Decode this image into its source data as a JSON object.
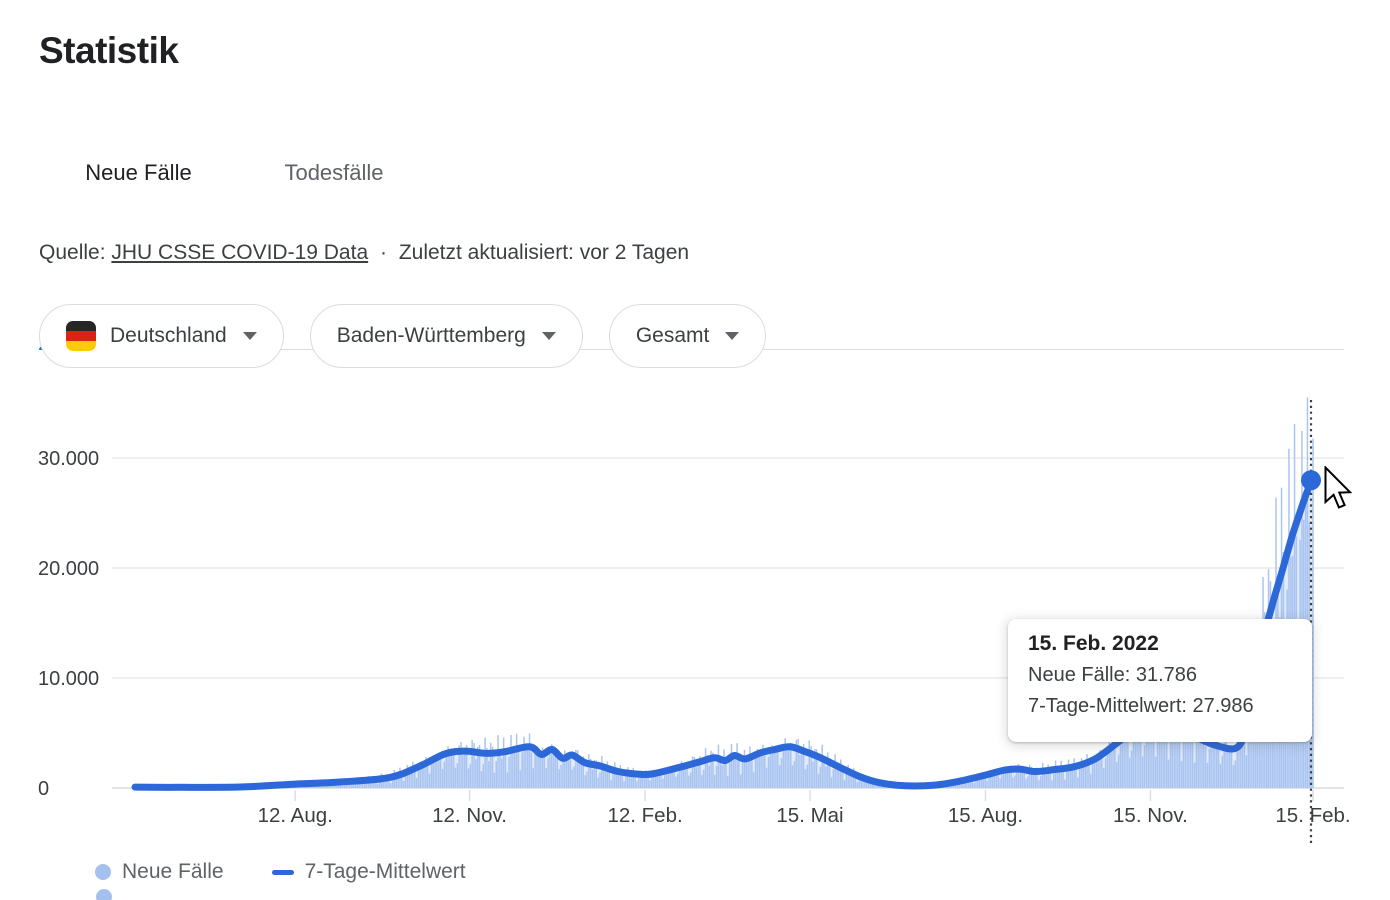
{
  "page": {
    "title": "Statistik"
  },
  "tabs": [
    {
      "label": "Neue Fälle",
      "active": true
    },
    {
      "label": "Todesfälle",
      "active": false
    }
  ],
  "source": {
    "prefix": "Quelle:",
    "link": "JHU CSSE COVID-19 Data",
    "separator": "·",
    "updated": "Zuletzt aktualisiert: vor 2 Tagen"
  },
  "filters": [
    {
      "label": "Deutschland",
      "icon": "german-flag-icon"
    },
    {
      "label": "Baden-Württemberg"
    },
    {
      "label": "Gesamt"
    }
  ],
  "tooltip": {
    "date": "15. Feb. 2022",
    "rows": [
      "Neue Fälle: 31.786",
      "7-Tage-Mittelwert: 27.986"
    ]
  },
  "legend": [
    {
      "label": "Neue Fälle",
      "swatch": "dot"
    },
    {
      "label": "7-Tage-Mittelwert",
      "swatch": "line"
    }
  ],
  "colors": {
    "accent_blue": "#1a73e8",
    "line_blue": "#2d68d8",
    "bar_blue": "#a5c2f0",
    "area_blue": "#d9e5f8",
    "grid": "#e9eaef",
    "baseline": "#dadce0",
    "hover_line": "#3c4043",
    "axis_text": "#3c4043"
  },
  "chart_data": {
    "type": "bar+line",
    "title": "Neue Fälle",
    "y_ticks": [
      {
        "label": "0",
        "value": 0
      },
      {
        "label": "10.000",
        "value": 10000
      },
      {
        "label": "20.000",
        "value": 20000
      },
      {
        "label": "30.000",
        "value": 30000
      }
    ],
    "ylim": [
      0,
      35500
    ],
    "x_ticks": [
      {
        "label": "12. Aug.",
        "t": 0.136
      },
      {
        "label": "12. Nov.",
        "t": 0.284
      },
      {
        "label": "12. Feb.",
        "t": 0.433
      },
      {
        "label": "15. Mai",
        "t": 0.573
      },
      {
        "label": "15. Aug.",
        "t": 0.722
      },
      {
        "label": "15. Nov.",
        "t": 0.862
      },
      {
        "label": "15. Feb.",
        "t": 1.0
      }
    ],
    "series": [
      {
        "name": "7-Tage-Mittelwert",
        "type": "line",
        "keypoints": [
          [
            0,
            80
          ],
          [
            0.038,
            60
          ],
          [
            0.089,
            90
          ],
          [
            0.136,
            350
          ],
          [
            0.174,
            550
          ],
          [
            0.216,
            950
          ],
          [
            0.242,
            2000
          ],
          [
            0.263,
            3100
          ],
          [
            0.28,
            3350
          ],
          [
            0.299,
            3150
          ],
          [
            0.314,
            3300
          ],
          [
            0.335,
            3750
          ],
          [
            0.345,
            3050
          ],
          [
            0.354,
            3500
          ],
          [
            0.363,
            2700
          ],
          [
            0.371,
            3000
          ],
          [
            0.382,
            2300
          ],
          [
            0.395,
            2000
          ],
          [
            0.41,
            1500
          ],
          [
            0.429,
            1250
          ],
          [
            0.441,
            1320
          ],
          [
            0.463,
            1900
          ],
          [
            0.48,
            2400
          ],
          [
            0.492,
            2750
          ],
          [
            0.501,
            2500
          ],
          [
            0.509,
            2950
          ],
          [
            0.518,
            2650
          ],
          [
            0.531,
            3200
          ],
          [
            0.543,
            3500
          ],
          [
            0.556,
            3750
          ],
          [
            0.569,
            3300
          ],
          [
            0.581,
            2800
          ],
          [
            0.598,
            1900
          ],
          [
            0.615,
            1050
          ],
          [
            0.632,
            480
          ],
          [
            0.654,
            200
          ],
          [
            0.679,
            260
          ],
          [
            0.7,
            620
          ],
          [
            0.721,
            1150
          ],
          [
            0.738,
            1620
          ],
          [
            0.751,
            1720
          ],
          [
            0.764,
            1500
          ],
          [
            0.781,
            1680
          ],
          [
            0.798,
            1950
          ],
          [
            0.815,
            2650
          ],
          [
            0.832,
            3950
          ],
          [
            0.849,
            5400
          ],
          [
            0.866,
            6400
          ],
          [
            0.883,
            6000
          ],
          [
            0.9,
            4700
          ],
          [
            0.917,
            3900
          ],
          [
            0.934,
            3600
          ],
          [
            0.942,
            5000
          ],
          [
            0.951,
            9000
          ],
          [
            0.958,
            13500
          ],
          [
            0.965,
            16500
          ],
          [
            0.974,
            19800
          ],
          [
            0.982,
            22800
          ],
          [
            0.99,
            25400
          ],
          [
            0.996,
            27200
          ],
          [
            1,
            27986
          ]
        ]
      },
      {
        "name": "Neue Fälle",
        "type": "bar",
        "days": 637,
        "weekly_pattern": [
          1.28,
          1.1,
          0.92,
          1.22,
          1.05,
          0.5,
          0.78
        ],
        "wiggle": 0.16,
        "cap": 35500,
        "last_value": 31786
      }
    ],
    "hover": {
      "t": 0.9983,
      "date": "15. Feb. 2022",
      "neue_faelle": 31786,
      "mittelwert_7_tage": 27986
    }
  }
}
